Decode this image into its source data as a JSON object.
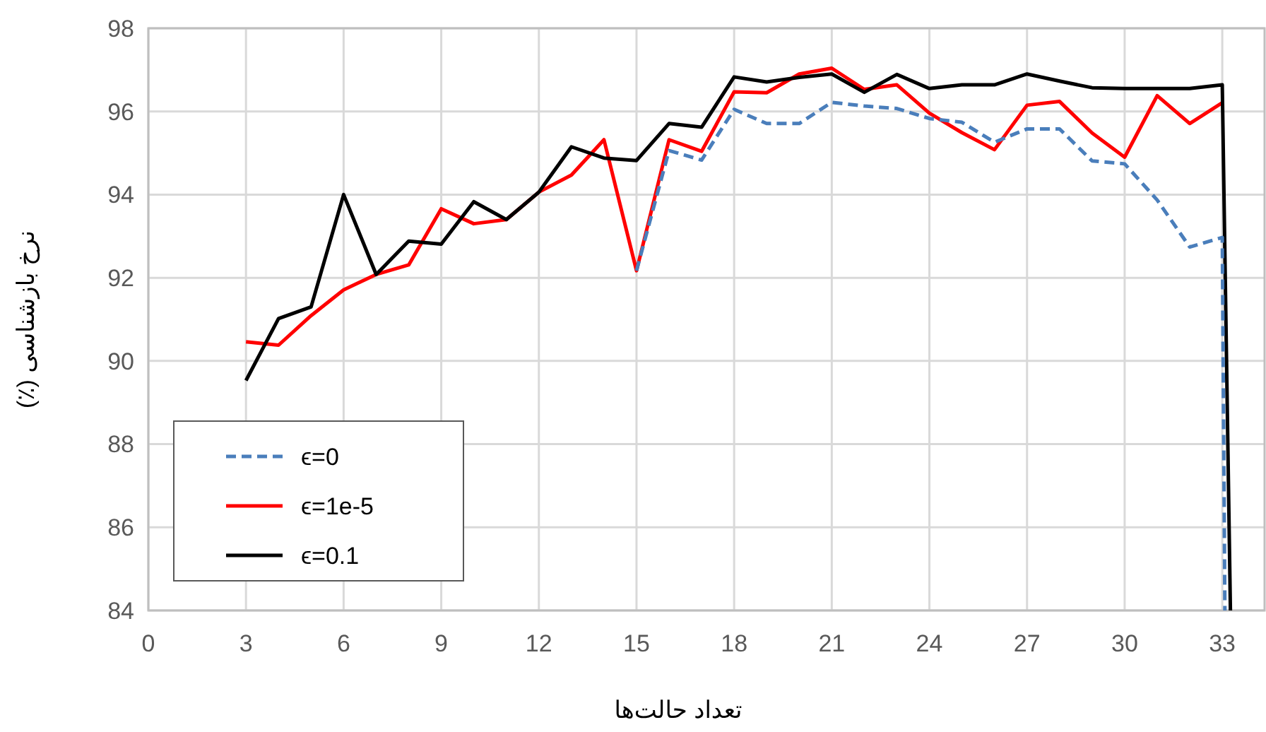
{
  "chart_data": {
    "type": "line",
    "xlabel": "تعداد حالت‌ها",
    "ylabel": "نرخ بازشناسی (٪)",
    "xlim": [
      0,
      34.3
    ],
    "xticks": [
      0,
      3,
      6,
      9,
      12,
      15,
      18,
      21,
      24,
      27,
      30,
      33
    ],
    "ylim": [
      84,
      98
    ],
    "yticks": [
      84,
      86,
      88,
      90,
      92,
      94,
      96,
      98
    ],
    "grid": true,
    "legend": "bottom left",
    "marker": "none",
    "series": [
      {
        "name": "ϵ=0",
        "color": "#4a7ebb",
        "line_style": "dashed",
        "x": [
          15,
          16,
          17,
          18,
          19,
          20,
          21,
          22,
          23,
          24,
          25,
          26,
          27,
          28,
          29,
          30,
          31,
          32,
          33,
          33.08
        ],
        "values": [
          92.17,
          95.06,
          94.83,
          96.05,
          95.71,
          95.71,
          96.22,
          96.13,
          96.07,
          95.83,
          95.74,
          95.26,
          95.58,
          95.58,
          94.81,
          94.74,
          93.87,
          92.74,
          92.97,
          84
        ]
      },
      {
        "name": "ϵ=1e-5",
        "color": "#ff0000",
        "line_style": "solid",
        "x": [
          3,
          4,
          5,
          6,
          7,
          8,
          9,
          10,
          11,
          12,
          13,
          14,
          15,
          16,
          17,
          18,
          19,
          20,
          21,
          22,
          23,
          24,
          25,
          26,
          27,
          28,
          29,
          30,
          31,
          32,
          33
        ],
        "values": [
          90.46,
          90.38,
          91.09,
          91.71,
          92.08,
          92.31,
          93.66,
          93.3,
          93.4,
          94.06,
          94.47,
          95.32,
          92.17,
          95.32,
          95.04,
          96.47,
          96.45,
          96.9,
          97.04,
          96.53,
          96.64,
          95.96,
          95.49,
          95.08,
          96.15,
          96.24,
          95.48,
          94.9,
          96.38,
          95.71,
          96.21
        ]
      },
      {
        "name": "ϵ=0.1",
        "color": "#000000",
        "line_style": "solid",
        "x": [
          3,
          4,
          5,
          6,
          7,
          8,
          9,
          10,
          11,
          12,
          13,
          14,
          15,
          16,
          17,
          18,
          19,
          20,
          21,
          22,
          23,
          24,
          25,
          26,
          27,
          28,
          29,
          30,
          31,
          32,
          33,
          33.25
        ],
        "values": [
          89.53,
          91.02,
          91.3,
          94.0,
          92.08,
          92.88,
          92.81,
          93.83,
          93.4,
          94.06,
          95.15,
          94.88,
          94.82,
          95.71,
          95.62,
          96.83,
          96.71,
          96.82,
          96.9,
          96.46,
          96.89,
          96.55,
          96.64,
          96.64,
          96.9,
          96.73,
          96.57,
          96.55,
          96.55,
          96.55,
          96.64,
          84
        ]
      }
    ]
  }
}
